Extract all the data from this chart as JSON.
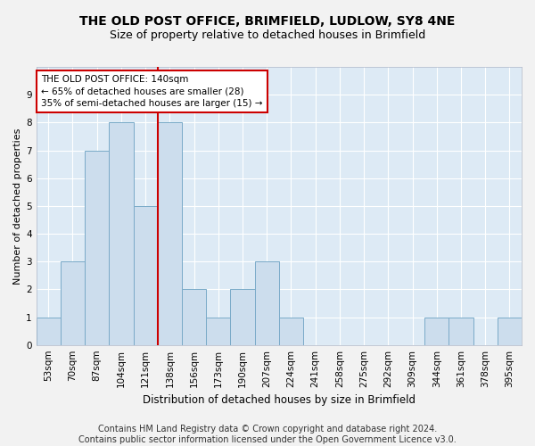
{
  "title": "THE OLD POST OFFICE, BRIMFIELD, LUDLOW, SY8 4NE",
  "subtitle": "Size of property relative to detached houses in Brimfield",
  "xlabel": "Distribution of detached houses by size in Brimfield",
  "ylabel": "Number of detached properties",
  "categories": [
    "53sqm",
    "70sqm",
    "87sqm",
    "104sqm",
    "121sqm",
    "138sqm",
    "156sqm",
    "173sqm",
    "190sqm",
    "207sqm",
    "224sqm",
    "241sqm",
    "258sqm",
    "275sqm",
    "292sqm",
    "309sqm",
    "344sqm",
    "361sqm",
    "378sqm",
    "395sqm"
  ],
  "values": [
    1,
    3,
    7,
    8,
    5,
    8,
    2,
    1,
    2,
    3,
    1,
    0,
    0,
    0,
    0,
    0,
    1,
    1,
    0,
    1
  ],
  "bar_color": "#ccdded",
  "bar_edge_color": "#7aaac8",
  "vline_color": "#cc0000",
  "vline_index": 5,
  "ylim": [
    0,
    10
  ],
  "yticks": [
    0,
    1,
    2,
    3,
    4,
    5,
    6,
    7,
    8,
    9,
    10
  ],
  "annotation_text": "THE OLD POST OFFICE: 140sqm\n← 65% of detached houses are smaller (28)\n35% of semi-detached houses are larger (15) →",
  "annotation_box_facecolor": "#ffffff",
  "annotation_box_edgecolor": "#cc0000",
  "footer_line1": "Contains HM Land Registry data © Crown copyright and database right 2024.",
  "footer_line2": "Contains public sector information licensed under the Open Government Licence v3.0.",
  "plot_bg_color": "#ddeaf5",
  "fig_bg_color": "#f2f2f2",
  "grid_color": "#ffffff",
  "title_fontsize": 10,
  "subtitle_fontsize": 9,
  "tick_fontsize": 7.5,
  "ylabel_fontsize": 8,
  "xlabel_fontsize": 8.5,
  "annotation_fontsize": 7.5,
  "footer_fontsize": 7
}
